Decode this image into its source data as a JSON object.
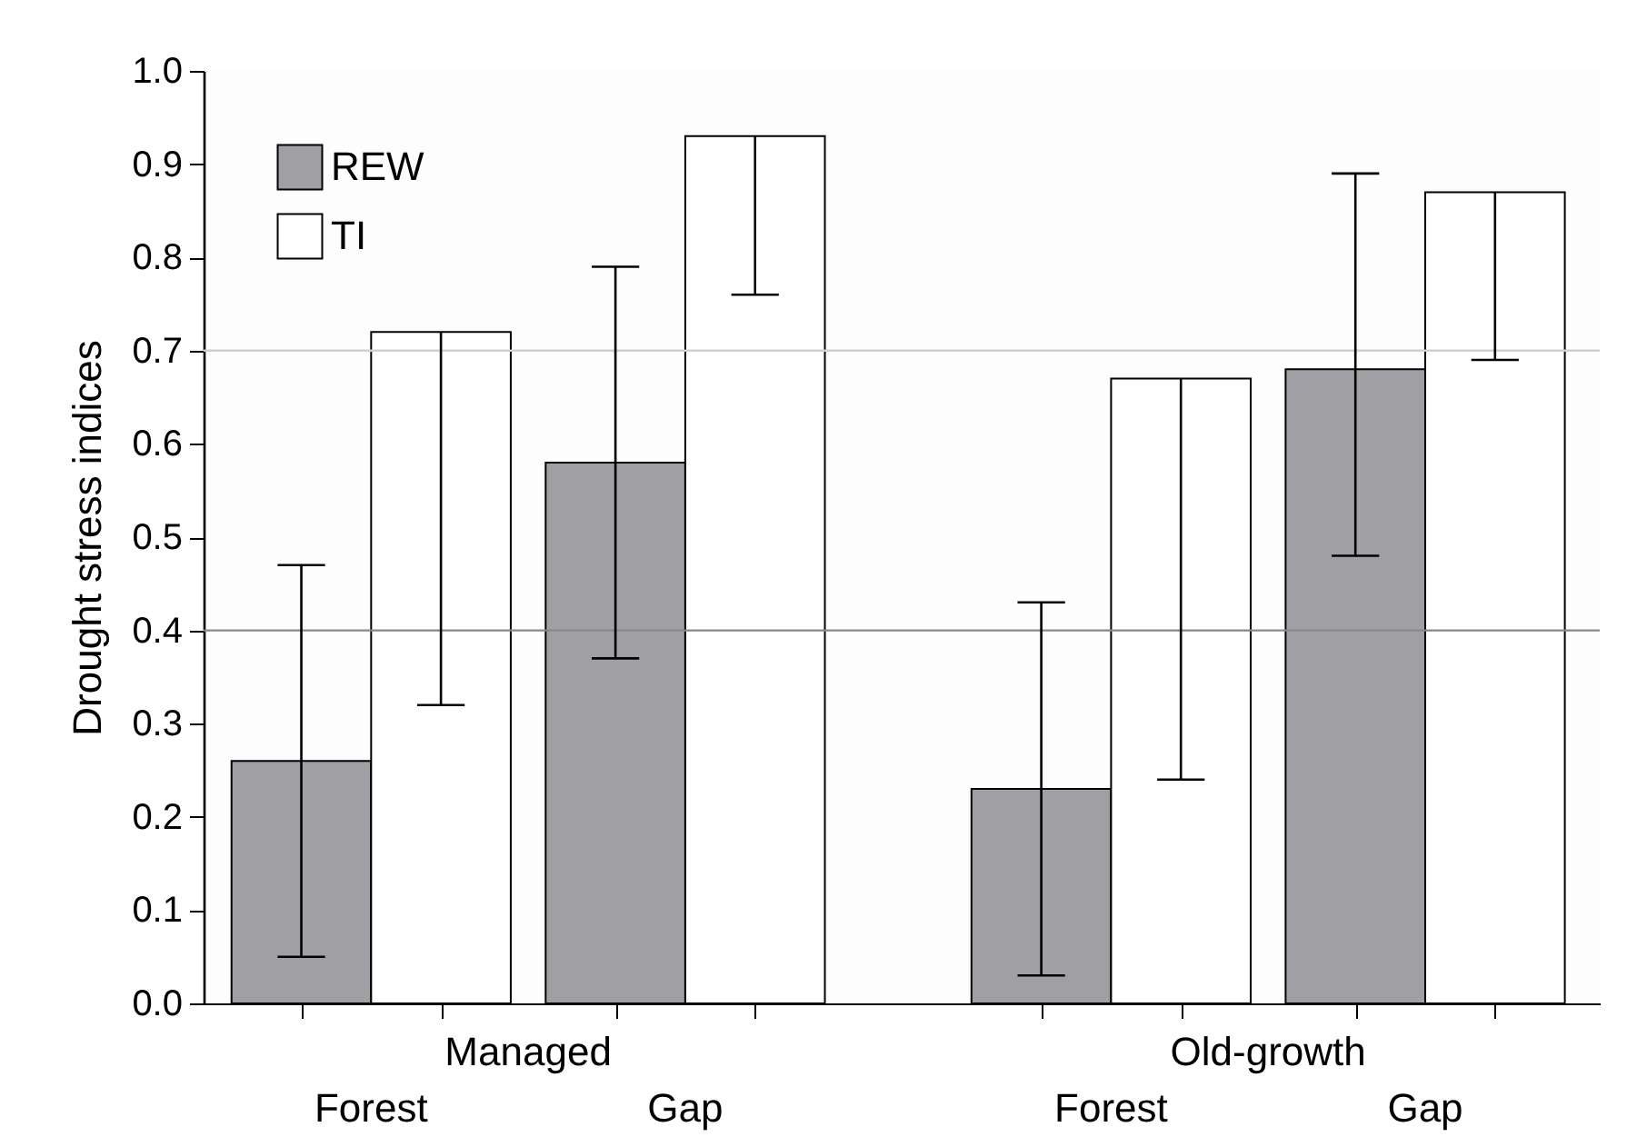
{
  "chart_data": {
    "type": "bar",
    "ylabel": "Drought stress indices",
    "categories": [
      "Forest",
      "Gap",
      "Forest",
      "Gap"
    ],
    "annotations": [
      "Managed",
      "Old-growth"
    ],
    "series": [
      {
        "name": "REW",
        "color": "#a0a0a4",
        "values": [
          0.26,
          0.58,
          0.23,
          0.68
        ],
        "errors": [
          [
            0.05,
            0.47
          ],
          [
            0.37,
            0.79
          ],
          [
            0.03,
            0.43
          ],
          [
            0.48,
            0.89
          ]
        ]
      },
      {
        "name": "TI",
        "color": "#ffffff",
        "values": [
          0.72,
          0.93,
          0.67,
          0.87
        ],
        "errors": [
          [
            0.32,
            0.72
          ],
          [
            0.76,
            0.93
          ],
          [
            0.24,
            0.67
          ],
          [
            0.69,
            0.87
          ]
        ]
      }
    ],
    "ylim": [
      0,
      1.0
    ],
    "yticks": [
      {
        "value": 0,
        "label": "0.0"
      },
      {
        "value": 0.1,
        "label": "0.1"
      },
      {
        "value": 0.2,
        "label": "0.2"
      },
      {
        "value": 0.3,
        "label": "0.3"
      },
      {
        "value": 0.4,
        "label": "0.4"
      },
      {
        "value": 0.5,
        "label": "0.5"
      },
      {
        "value": 0.6,
        "label": "0.6"
      },
      {
        "value": 0.7,
        "label": "0.7"
      },
      {
        "value": 0.8,
        "label": "0.8"
      },
      {
        "value": 0.9,
        "label": "0.9"
      },
      {
        "value": 1.0,
        "label": "1.0"
      }
    ],
    "ref_lines": [
      {
        "axis": "y",
        "value": 0.4,
        "color": "#888888"
      },
      {
        "axis": "y",
        "value": 0.7,
        "color": "#d0d0d0"
      }
    ],
    "grid": false,
    "legend": "top left"
  }
}
